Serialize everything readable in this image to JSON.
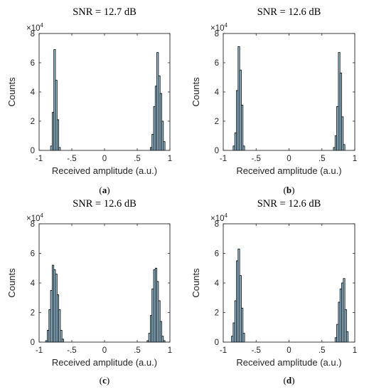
{
  "chart_data": [
    {
      "type": "bar",
      "title": "SNR = 12.7 dB",
      "caption": "(a)",
      "xlabel": "Received amplitude (a.u.)",
      "ylabel": "Counts",
      "y_multiplier_base": "×10",
      "y_multiplier_exp": "4",
      "xlim": [
        -1,
        1
      ],
      "ylim": [
        0,
        8
      ],
      "xticks": [
        -1,
        -0.5,
        0,
        0.5,
        1
      ],
      "yticks": [
        0,
        2,
        4,
        6,
        8
      ],
      "bin_width": 0.025,
      "bin_starts": [
        -0.825,
        -0.8,
        -0.775,
        -0.75,
        -0.725,
        -0.7,
        0.7,
        0.725,
        0.75,
        0.775,
        0.8,
        0.825,
        0.85,
        0.875,
        0.9
      ],
      "values": [
        0.3,
        2.6,
        6.9,
        4.8,
        2.1,
        0.2,
        0.2,
        1.1,
        3.0,
        4.4,
        6.7,
        5.1,
        3.9,
        2.0,
        0.6
      ]
    },
    {
      "type": "bar",
      "title": "SNR = 12.6 dB",
      "caption": "(b)",
      "xlabel": "Received amplitude (a.u.)",
      "ylabel": "Counts",
      "y_multiplier_base": "×10",
      "y_multiplier_exp": "4",
      "xlim": [
        -1,
        1
      ],
      "ylim": [
        0,
        8
      ],
      "xticks": [
        -1,
        -0.5,
        0,
        0.5,
        1
      ],
      "yticks": [
        0,
        2,
        4,
        6,
        8
      ],
      "bin_width": 0.025,
      "bin_starts": [
        -0.85,
        -0.825,
        -0.8,
        -0.775,
        -0.75,
        -0.725,
        -0.7,
        0.675,
        0.7,
        0.725,
        0.75,
        0.775,
        0.8,
        0.825
      ],
      "values": [
        0.3,
        1.2,
        4.1,
        7.1,
        5.5,
        3.1,
        0.3,
        0.2,
        1.0,
        3.0,
        6.7,
        5.3,
        2.3,
        0.4
      ]
    },
    {
      "type": "bar",
      "title": "SNR = 12.6 dB",
      "caption": "(c)",
      "xlabel": "Received amplitude (a.u.)",
      "ylabel": "Counts",
      "y_multiplier_base": "×10",
      "y_multiplier_exp": "4",
      "xlim": [
        -1,
        1
      ],
      "ylim": [
        0,
        8
      ],
      "xticks": [
        -1,
        -0.5,
        0,
        0.5,
        1
      ],
      "yticks": [
        0,
        2,
        4,
        6,
        8
      ],
      "bin_width": 0.025,
      "bin_starts": [
        -0.9,
        -0.875,
        -0.85,
        -0.825,
        -0.8,
        -0.775,
        -0.75,
        -0.725,
        -0.7,
        -0.675,
        -0.65,
        0.65,
        0.675,
        0.7,
        0.725,
        0.75,
        0.775,
        0.8,
        0.825,
        0.85,
        0.875,
        0.9
      ],
      "values": [
        0.1,
        0.8,
        2.2,
        3.5,
        5.2,
        4.9,
        4.6,
        3.2,
        2.2,
        0.8,
        0.2,
        0.1,
        0.6,
        1.8,
        3.6,
        4.9,
        5.0,
        4.1,
        2.8,
        1.4,
        0.4,
        0.1
      ]
    },
    {
      "type": "bar",
      "title": "SNR = 12.6 dB",
      "caption": "(d)",
      "xlabel": "Received amplitude (a.u.)",
      "ylabel": "Counts",
      "y_multiplier_base": "×10",
      "y_multiplier_exp": "4",
      "xlim": [
        -1,
        1
      ],
      "ylim": [
        0,
        8
      ],
      "xticks": [
        -1,
        -0.5,
        0,
        0.5,
        1
      ],
      "yticks": [
        0,
        2,
        4,
        6,
        8
      ],
      "bin_width": 0.025,
      "bin_starts": [
        -0.875,
        -0.85,
        -0.825,
        -0.8,
        -0.775,
        -0.75,
        -0.725,
        -0.7,
        0.7,
        0.725,
        0.75,
        0.775,
        0.8,
        0.825,
        0.85,
        0.875
      ],
      "values": [
        0.4,
        1.3,
        2.8,
        5.5,
        6.3,
        4.5,
        2.3,
        0.6,
        0.3,
        1.2,
        2.7,
        3.6,
        4.0,
        4.3,
        2.2,
        0.7
      ]
    }
  ]
}
